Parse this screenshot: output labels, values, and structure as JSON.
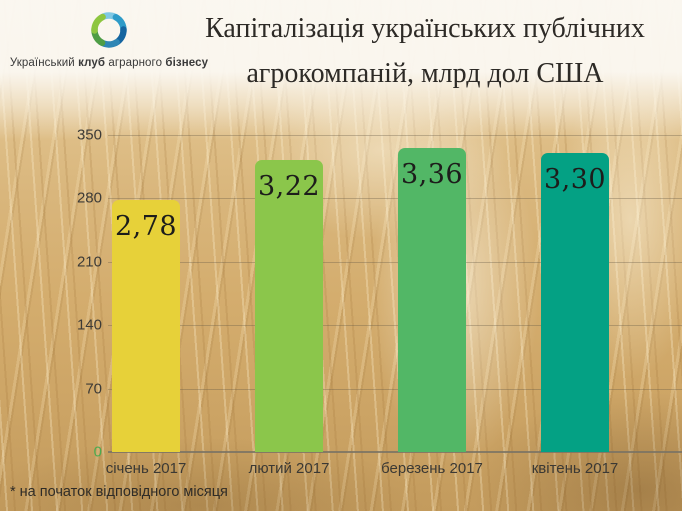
{
  "brand": {
    "name_regular1": "Український",
    "name_bold1": "клуб",
    "name_regular2": "аграрного",
    "name_bold2": "бізнесу",
    "logo_icon": "swirl-ring",
    "logo_colors": [
      "#7fc8e4",
      "#2e9bc8",
      "#1565a0",
      "#2e86b5",
      "#4e9d45",
      "#8dc63f"
    ]
  },
  "title": {
    "line1": "Капіталізація українських публічних",
    "line2": "агрокомпаній, млрд дол США"
  },
  "chart_data": {
    "type": "bar",
    "title": "Капіталізація українських публічних агрокомпаній, млрд дол США",
    "unit": "млрд дол США",
    "categories": [
      "січень 2017",
      "лютий 2017",
      "березень 2017",
      "квітень 2017"
    ],
    "values": [
      2.78,
      3.22,
      3.36,
      3.3
    ],
    "value_labels": [
      "2,78",
      "3,22",
      "3,36",
      "3,30"
    ],
    "bar_colors": [
      "#e7d139",
      "#8bc64b",
      "#52b766",
      "#04a184"
    ],
    "y_ticks": [
      350,
      280,
      210,
      140,
      70,
      0
    ],
    "ylim": [
      0,
      350
    ],
    "value_to_axis_factor": 100,
    "grid": true,
    "legend": false,
    "axis_text_color": "#3d3b37",
    "zero_tick_color": "#4cab50",
    "footnote": "* на початок відповідного місяця"
  }
}
